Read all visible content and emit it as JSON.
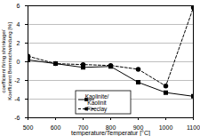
{
  "chart_data": {
    "type": "line",
    "x_label": "temperature/Temperatur [°C]",
    "y_label": "coefficient firing shrinkage/Koeffizient Brennschwindung [%]",
    "x": [
      500,
      600,
      700,
      800,
      900,
      1000,
      1100
    ],
    "series": [
      {
        "name": "Kaolinite/ Kaolinit",
        "color": "#000000",
        "marker": "square",
        "line_style": "solid",
        "values": [
          0.2,
          -0.2,
          -0.6,
          -0.5,
          -2.2,
          -3.3,
          -3.7
        ]
      },
      {
        "name": "Fireclay",
        "color": "#000000",
        "marker": "circle",
        "line_style": "dashed",
        "values": [
          0.6,
          -0.2,
          -0.3,
          -0.4,
          -0.8,
          -2.6,
          5.8
        ]
      }
    ],
    "xlim": [
      500,
      1100
    ],
    "xticks": [
      500,
      600,
      700,
      800,
      900,
      1000,
      1100
    ],
    "ylim": [
      -6,
      6
    ],
    "yticks": [
      -6,
      -4,
      -2,
      0,
      2,
      4,
      6
    ],
    "grid": true,
    "legend": "lower center"
  }
}
